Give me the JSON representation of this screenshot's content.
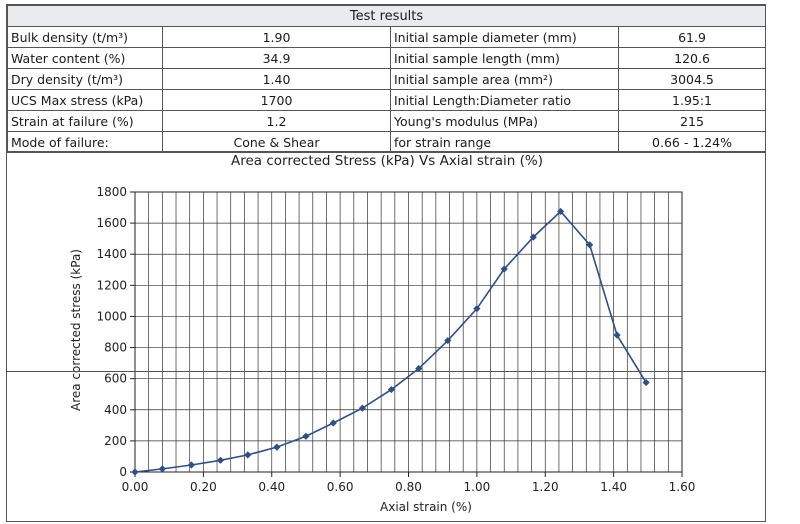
{
  "header": {
    "title": "Test results"
  },
  "rows": [
    {
      "l_label": "Bulk density (t/m³)",
      "l_value": "1.90",
      "r_label": "Initial sample diameter (mm)",
      "r_value": "61.9"
    },
    {
      "l_label": "Water content (%)",
      "l_value": "34.9",
      "r_label": "Initial sample length (mm)",
      "r_value": "120.6"
    },
    {
      "l_label": "Dry density (t/m³)",
      "l_value": "1.40",
      "r_label": "Initial sample area (mm²)",
      "r_value": "3004.5"
    },
    {
      "l_label": "UCS Max stress (kPa)",
      "l_value": "1700",
      "r_label": "Initial Length:Diameter ratio",
      "r_value": "1.95:1"
    },
    {
      "l_label": "Strain at failure (%)",
      "l_value": "1.2",
      "r_label": "Young's modulus (MPa)",
      "r_value": "215"
    },
    {
      "l_label": "Mode of failure:",
      "l_value": "Cone & Shear",
      "r_label": "for strain range",
      "r_value": "0.66 - 1.24%"
    }
  ],
  "chart_data": {
    "type": "line",
    "title": "Area corrected Stress (kPa) Vs Axial strain (%)",
    "xlabel": "Axial strain (%)",
    "ylabel": "Area corrected stress (kPa)",
    "xlim": [
      0,
      1.6
    ],
    "ylim": [
      0,
      1800
    ],
    "x_ticks": [
      "0.00",
      "0.20",
      "0.40",
      "0.60",
      "0.80",
      "1.00",
      "1.20",
      "1.40",
      "1.60"
    ],
    "y_ticks": [
      "0",
      "200",
      "400",
      "600",
      "800",
      "1000",
      "1200",
      "1400",
      "1600",
      "1800"
    ],
    "grid": true,
    "series": [
      {
        "name": "Area corrected stress",
        "color": "#2f4f8a",
        "x": [
          0.0,
          0.08,
          0.165,
          0.25,
          0.33,
          0.415,
          0.5,
          0.58,
          0.665,
          0.75,
          0.83,
          0.915,
          1.0,
          1.08,
          1.165,
          1.245,
          1.33,
          1.41,
          1.495
        ],
        "y": [
          0,
          20,
          45,
          75,
          110,
          160,
          230,
          315,
          410,
          530,
          665,
          845,
          1050,
          1305,
          1510,
          1675,
          1460,
          880,
          575
        ]
      }
    ]
  }
}
